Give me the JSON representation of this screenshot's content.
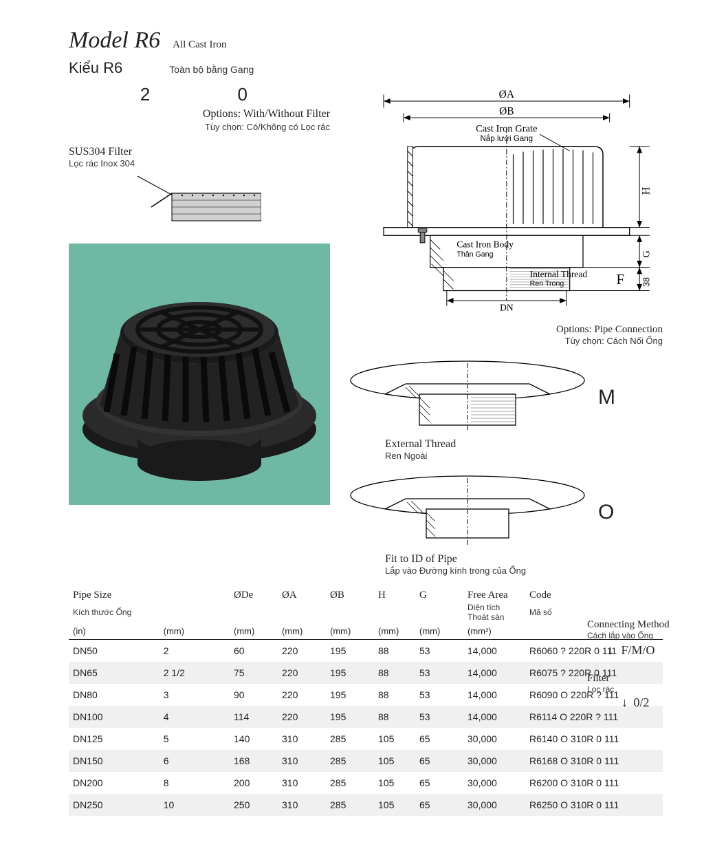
{
  "header": {
    "model": "Model R6",
    "model_sub": "All Cast Iron",
    "model_vn": "Kiểu R6",
    "model_vn_sub": "Toàn bộ bằng Gang"
  },
  "options": {
    "digits": "2   0",
    "filter_line": "Options: With/Without Filter",
    "filter_line_vn": "Tùy chọn: Có/Không có Lọc rác",
    "sus_title": "SUS304 Filter",
    "sus_title_vn": "Lọc rác Inox 304",
    "pipe_conn": "Options: Pipe Connection",
    "pipe_conn_vn": "Tùy chọn: Cách Nối Ống"
  },
  "diagram": {
    "dim_A": "ØA",
    "dim_B": "ØB",
    "grate": "Cast Iron Grate",
    "grate_vn": "Nắp lưới Gang",
    "body": "Cast Iron Body",
    "body_vn": "Thân Gang",
    "thread": "Internal Thread",
    "thread_vn": "Ren Trong",
    "DN": "DN",
    "H": "H",
    "G": "G",
    "F": "F",
    "d38": "38",
    "ext_thread": "External Thread",
    "ext_thread_vn": "Ren Ngoài",
    "M": "M",
    "fit_id": "Fit to ID of Pipe",
    "fit_id_vn": "Lắp vào Đường kính trong của Ống",
    "O": "O"
  },
  "photo": {
    "bg": "#6fb8a4",
    "product_color": "#1a1a1a"
  },
  "table": {
    "columns": [
      {
        "h": "Pipe Size",
        "sub": "Kích thước Ống",
        "unit": "(in)"
      },
      {
        "h": "ØDe",
        "sub": "",
        "unit": "(mm)"
      },
      {
        "h": "ØA",
        "sub": "",
        "unit": "(mm)"
      },
      {
        "h": "ØB",
        "sub": "",
        "unit": "(mm)"
      },
      {
        "h": "H",
        "sub": "",
        "unit": "(mm)"
      },
      {
        "h": "G",
        "sub": "",
        "unit": "(mm)"
      },
      {
        "h": "Free Area",
        "sub": "Diện tích Thoát sàn",
        "unit": "(mm²)"
      },
      {
        "h": "Code",
        "sub": "Mã số",
        "unit": ""
      }
    ],
    "col_widths": [
      "70px",
      "60px",
      "70px",
      "70px",
      "70px",
      "60px",
      "70px",
      "90px",
      "200px"
    ],
    "rows": [
      [
        "DN50",
        "2",
        "60",
        "220",
        "195",
        "88",
        "53",
        "14,000",
        "R6060 ? 220R 0 111"
      ],
      [
        "DN65",
        "2 1/2",
        "75",
        "220",
        "195",
        "88",
        "53",
        "14,000",
        "R6075 ? 220R 0 111"
      ],
      [
        "DN80",
        "3",
        "90",
        "220",
        "195",
        "88",
        "53",
        "14,000",
        "R6090 O 220R ? 111"
      ],
      [
        "DN100",
        "4",
        "114",
        "220",
        "195",
        "88",
        "53",
        "14,000",
        "R6114 O 220R ? 111"
      ],
      [
        "DN125",
        "5",
        "140",
        "310",
        "285",
        "105",
        "65",
        "30,000",
        "R6140 O 310R 0 111"
      ],
      [
        "DN150",
        "6",
        "168",
        "310",
        "285",
        "105",
        "65",
        "30,000",
        "R6168 O 310R 0 111"
      ],
      [
        "DN200",
        "8",
        "200",
        "310",
        "285",
        "105",
        "65",
        "30,000",
        "R6200 O 310R 0 111"
      ],
      [
        "DN250",
        "10",
        "250",
        "310",
        "285",
        "105",
        "65",
        "30,000",
        "R6250 O 310R 0 111"
      ]
    ]
  },
  "side": {
    "conn_method": "Connecting Method",
    "conn_method_vn": "Cách lắp vào Ống",
    "fmo": "F/M/O",
    "filter": "Filter",
    "filter_vn": "Lọc rác",
    "zero_two": "0/2"
  }
}
